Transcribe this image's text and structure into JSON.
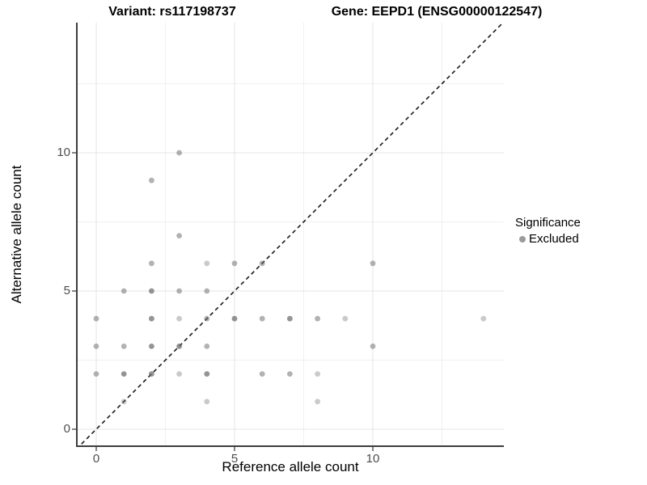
{
  "chart_data": {
    "type": "scatter",
    "title_left": "Variant: rs117198737",
    "title_right": "Gene: EEPD1 (ENSG00000122547)",
    "xlabel": "Reference allele count",
    "ylabel": "Alternative allele count",
    "xlim": [
      -0.72,
      14.72
    ],
    "ylim": [
      -0.72,
      14.72
    ],
    "x_ticks": [
      0,
      5,
      10
    ],
    "y_ticks": [
      0,
      5,
      10
    ],
    "x_minor_ticks": [
      2.5,
      7.5,
      12.5
    ],
    "y_minor_ticks": [
      2.5,
      7.5,
      12.5
    ],
    "grid": "major+minor, light gray on white",
    "identity_line": {
      "equation": "y = x",
      "style": "dashed",
      "color": "#1a1a1a"
    },
    "point_color": "#666666",
    "points": [
      {
        "x": 1,
        "y": 1,
        "a": 0.35
      },
      {
        "x": 4,
        "y": 1,
        "a": 0.35
      },
      {
        "x": 8,
        "y": 1,
        "a": 0.35
      },
      {
        "x": 0,
        "y": 2,
        "a": 0.5
      },
      {
        "x": 1,
        "y": 2,
        "a": 0.7
      },
      {
        "x": 2,
        "y": 2,
        "a": 0.7
      },
      {
        "x": 3,
        "y": 2,
        "a": 0.35
      },
      {
        "x": 4,
        "y": 2,
        "a": 0.7
      },
      {
        "x": 6,
        "y": 2,
        "a": 0.5
      },
      {
        "x": 7,
        "y": 2,
        "a": 0.5
      },
      {
        "x": 8,
        "y": 2,
        "a": 0.35
      },
      {
        "x": 0,
        "y": 3,
        "a": 0.5
      },
      {
        "x": 1,
        "y": 3,
        "a": 0.5
      },
      {
        "x": 2,
        "y": 3,
        "a": 0.7
      },
      {
        "x": 3,
        "y": 3,
        "a": 0.7
      },
      {
        "x": 4,
        "y": 3,
        "a": 0.5
      },
      {
        "x": 10,
        "y": 3,
        "a": 0.5
      },
      {
        "x": 0,
        "y": 4,
        "a": 0.5
      },
      {
        "x": 2,
        "y": 4,
        "a": 0.7
      },
      {
        "x": 3,
        "y": 4,
        "a": 0.35
      },
      {
        "x": 4,
        "y": 4,
        "a": 0.5
      },
      {
        "x": 5,
        "y": 4,
        "a": 0.7
      },
      {
        "x": 6,
        "y": 4,
        "a": 0.5
      },
      {
        "x": 7,
        "y": 4,
        "a": 0.7
      },
      {
        "x": 8,
        "y": 4,
        "a": 0.5
      },
      {
        "x": 9,
        "y": 4,
        "a": 0.35
      },
      {
        "x": 14,
        "y": 4,
        "a": 0.35
      },
      {
        "x": 1,
        "y": 5,
        "a": 0.5
      },
      {
        "x": 2,
        "y": 5,
        "a": 0.7
      },
      {
        "x": 3,
        "y": 5,
        "a": 0.5
      },
      {
        "x": 4,
        "y": 5,
        "a": 0.5
      },
      {
        "x": 2,
        "y": 6,
        "a": 0.5
      },
      {
        "x": 4,
        "y": 6,
        "a": 0.35
      },
      {
        "x": 5,
        "y": 6,
        "a": 0.5
      },
      {
        "x": 6,
        "y": 6,
        "a": 0.5
      },
      {
        "x": 10,
        "y": 6,
        "a": 0.5
      },
      {
        "x": 3,
        "y": 7,
        "a": 0.5
      },
      {
        "x": 2,
        "y": 9,
        "a": 0.5
      },
      {
        "x": 3,
        "y": 10,
        "a": 0.5
      }
    ],
    "legend": {
      "title": "Significance",
      "position": "right",
      "items": [
        {
          "label": "Excluded",
          "color": "#9b9b9b"
        }
      ]
    }
  }
}
